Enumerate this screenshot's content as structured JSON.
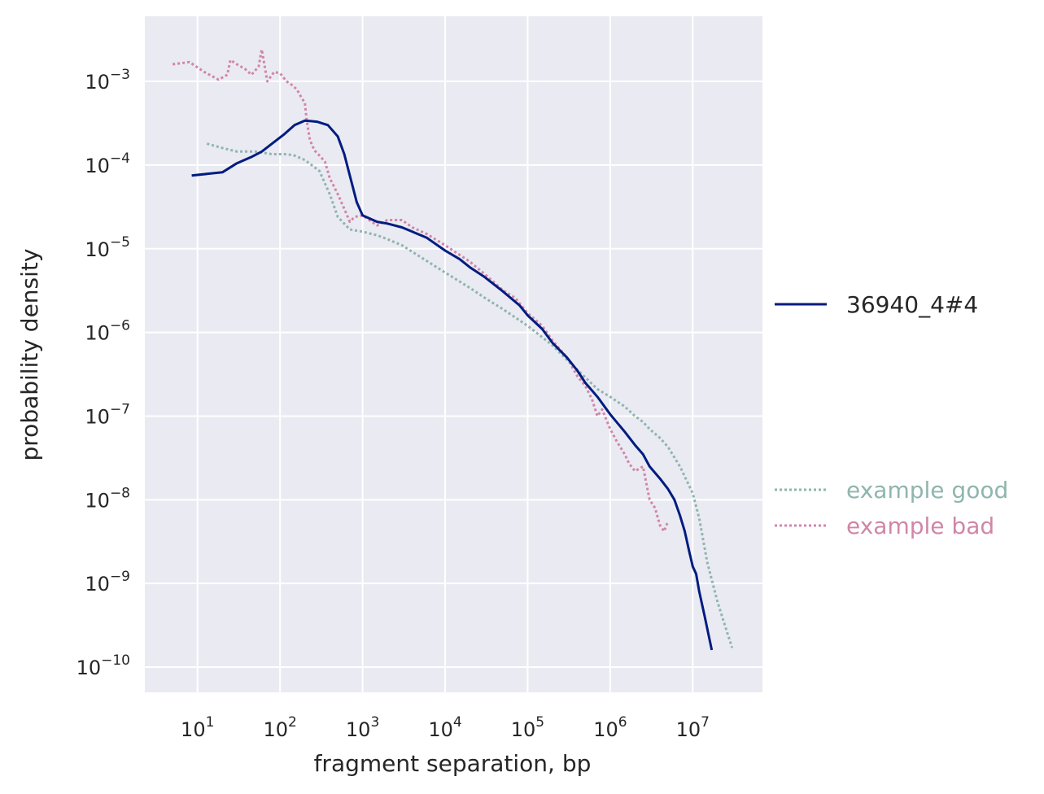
{
  "chart_data": {
    "type": "line",
    "xlabel": "fragment separation, bp",
    "ylabel": "probability density",
    "xscale": "log",
    "yscale": "log",
    "xlim": [
      2.3,
      70000000
    ],
    "ylim": [
      5e-11,
      0.006
    ],
    "x_ticks": [
      {
        "base": "10",
        "exp": "1",
        "value": 10
      },
      {
        "base": "10",
        "exp": "2",
        "value": 100
      },
      {
        "base": "10",
        "exp": "3",
        "value": 1000
      },
      {
        "base": "10",
        "exp": "4",
        "value": 10000
      },
      {
        "base": "10",
        "exp": "5",
        "value": 100000
      },
      {
        "base": "10",
        "exp": "6",
        "value": 1000000
      },
      {
        "base": "10",
        "exp": "7",
        "value": 10000000
      }
    ],
    "y_ticks": [
      {
        "base": "10",
        "exp": "−3",
        "value": 0.001
      },
      {
        "base": "10",
        "exp": "−4",
        "value": 0.0001
      },
      {
        "base": "10",
        "exp": "−5",
        "value": 1e-05
      },
      {
        "base": "10",
        "exp": "−6",
        "value": 1e-06
      },
      {
        "base": "10",
        "exp": "−7",
        "value": 1e-07
      },
      {
        "base": "10",
        "exp": "−8",
        "value": 1e-08
      },
      {
        "base": "10",
        "exp": "−9",
        "value": 1e-09
      },
      {
        "base": "10",
        "exp": "−10",
        "value": 1e-10
      }
    ],
    "grid": true,
    "legend_placement": "right",
    "series": [
      {
        "name": "36940_4#4",
        "color": "#001c7f",
        "style": "solid",
        "points": [
          [
            8.5,
            7.5e-05
          ],
          [
            20,
            8.2e-05
          ],
          [
            30,
            0.000105
          ],
          [
            45,
            0.000125
          ],
          [
            60,
            0.000145
          ],
          [
            80,
            0.00018
          ],
          [
            110,
            0.00023
          ],
          [
            150,
            0.0003
          ],
          [
            200,
            0.00034
          ],
          [
            280,
            0.00033
          ],
          [
            380,
            0.0003
          ],
          [
            500,
            0.00022
          ],
          [
            600,
            0.000135
          ],
          [
            700,
            7.5e-05
          ],
          [
            850,
            3.6e-05
          ],
          [
            1000,
            2.5e-05
          ],
          [
            1500,
            2.1e-05
          ],
          [
            2000,
            2e-05
          ],
          [
            3000,
            1.8e-05
          ],
          [
            4000,
            1.6e-05
          ],
          [
            6000,
            1.35e-05
          ],
          [
            10000,
            9.5e-06
          ],
          [
            15000,
            7.5e-06
          ],
          [
            20000,
            6e-06
          ],
          [
            30000,
            4.6e-06
          ],
          [
            50000,
            3.1e-06
          ],
          [
            80000,
            2.1e-06
          ],
          [
            100000,
            1.6e-06
          ],
          [
            150000,
            1.1e-06
          ],
          [
            200000,
            7.5e-07
          ],
          [
            300000,
            5e-07
          ],
          [
            400000,
            3.5e-07
          ],
          [
            500000,
            2.5e-07
          ],
          [
            700000,
            1.7e-07
          ],
          [
            1000000,
            1.05e-07
          ],
          [
            1500000,
            6.5e-08
          ],
          [
            2000000,
            4.5e-08
          ],
          [
            2500000,
            3.5e-08
          ],
          [
            3000000,
            2.5e-08
          ],
          [
            4000000,
            1.8e-08
          ],
          [
            5000000,
            1.35e-08
          ],
          [
            6000000,
            1e-08
          ],
          [
            7000000,
            6.5e-09
          ],
          [
            8000000,
            4.2e-09
          ],
          [
            9000000,
            2.5e-09
          ],
          [
            10000000,
            1.6e-09
          ],
          [
            11000000,
            1.3e-09
          ],
          [
            12000000,
            8e-10
          ],
          [
            14000000,
            4e-10
          ],
          [
            17000000,
            1.6e-10
          ]
        ]
      },
      {
        "name": "example good",
        "color": "#8fb5ae",
        "style": "dotted",
        "points": [
          [
            13,
            0.00018
          ],
          [
            20,
            0.00016
          ],
          [
            30,
            0.000145
          ],
          [
            50,
            0.000145
          ],
          [
            80,
            0.000135
          ],
          [
            120,
            0.000135
          ],
          [
            150,
            0.00013
          ],
          [
            200,
            0.000115
          ],
          [
            300,
            8.5e-05
          ],
          [
            400,
            4.5e-05
          ],
          [
            500,
            2.4e-05
          ],
          [
            700,
            1.7e-05
          ],
          [
            1000,
            1.6e-05
          ],
          [
            1500,
            1.45e-05
          ],
          [
            2000,
            1.3e-05
          ],
          [
            3000,
            1.1e-05
          ],
          [
            5000,
            8e-06
          ],
          [
            10000,
            5.2e-06
          ],
          [
            20000,
            3.4e-06
          ],
          [
            30000,
            2.6e-06
          ],
          [
            50000,
            1.9e-06
          ],
          [
            100000,
            1.2e-06
          ],
          [
            200000,
            7e-07
          ],
          [
            300000,
            4.7e-07
          ],
          [
            500000,
            2.9e-07
          ],
          [
            700000,
            2.1e-07
          ],
          [
            1000000,
            1.7e-07
          ],
          [
            1500000,
            1.3e-07
          ],
          [
            2000000,
            1e-07
          ],
          [
            2500000,
            8.5e-08
          ],
          [
            3000000,
            7e-08
          ],
          [
            4000000,
            5.5e-08
          ],
          [
            5000000,
            4.3e-08
          ],
          [
            7000000,
            2.5e-08
          ],
          [
            10000000,
            1.2e-08
          ],
          [
            12000000,
            6e-09
          ],
          [
            15000000,
            1.8e-09
          ],
          [
            20000000,
            6e-10
          ],
          [
            25000000,
            3e-10
          ],
          [
            30000000,
            1.7e-10
          ]
        ]
      },
      {
        "name": "example bad",
        "color": "#d086a8",
        "style": "dotted",
        "points": [
          [
            5,
            0.0016
          ],
          [
            8,
            0.0017
          ],
          [
            12,
            0.0013
          ],
          [
            18,
            0.00105
          ],
          [
            23,
            0.0012
          ],
          [
            25,
            0.0018
          ],
          [
            30,
            0.0016
          ],
          [
            38,
            0.0014
          ],
          [
            45,
            0.0012
          ],
          [
            55,
            0.0015
          ],
          [
            60,
            0.0024
          ],
          [
            70,
            0.001
          ],
          [
            85,
            0.0013
          ],
          [
            100,
            0.00125
          ],
          [
            120,
            0.001
          ],
          [
            140,
            0.0009
          ],
          [
            160,
            0.0008
          ],
          [
            180,
            0.00065
          ],
          [
            200,
            0.00055
          ],
          [
            210,
            0.00035
          ],
          [
            230,
            0.0002
          ],
          [
            260,
            0.00015
          ],
          [
            300,
            0.00013
          ],
          [
            350,
            0.00011
          ],
          [
            400,
            7e-05
          ],
          [
            500,
            4.5e-05
          ],
          [
            600,
            3e-05
          ],
          [
            700,
            2.1e-05
          ],
          [
            800,
            2.4e-05
          ],
          [
            1000,
            2.5e-05
          ],
          [
            1500,
            1.9e-05
          ],
          [
            2000,
            2.2e-05
          ],
          [
            3000,
            2.2e-05
          ],
          [
            4000,
            1.8e-05
          ],
          [
            6000,
            1.5e-05
          ],
          [
            10000,
            1.1e-05
          ],
          [
            20000,
            7e-06
          ],
          [
            30000,
            5e-06
          ],
          [
            50000,
            3.2e-06
          ],
          [
            70000,
            2.6e-06
          ],
          [
            100000,
            1.7e-06
          ],
          [
            150000,
            1.2e-06
          ],
          [
            200000,
            8e-07
          ],
          [
            300000,
            5e-07
          ],
          [
            400000,
            3e-07
          ],
          [
            500000,
            2.3e-07
          ],
          [
            600000,
            1.6e-07
          ],
          [
            700000,
            1e-07
          ],
          [
            800000,
            1.2e-07
          ],
          [
            1000000,
            7e-08
          ],
          [
            1200000,
            5e-08
          ],
          [
            1500000,
            3.5e-08
          ],
          [
            1700000,
            2.7e-08
          ],
          [
            2000000,
            2.2e-08
          ],
          [
            2500000,
            2.5e-08
          ],
          [
            3000000,
            1e-08
          ],
          [
            3500000,
            8e-09
          ],
          [
            4000000,
            5e-09
          ],
          [
            4500000,
            4.2e-09
          ],
          [
            5000000,
            5.5e-09
          ]
        ]
      }
    ],
    "legend": [
      {
        "label": "36940_4#4",
        "color": "#001c7f",
        "style": "solid",
        "text_color": "#262626"
      },
      {
        "label": "example good",
        "color": "#8fb5ae",
        "style": "dotted",
        "text_color": "#8fb5ae"
      },
      {
        "label": "example bad",
        "color": "#d086a8",
        "style": "dotted",
        "text_color": "#d086a8"
      }
    ]
  }
}
